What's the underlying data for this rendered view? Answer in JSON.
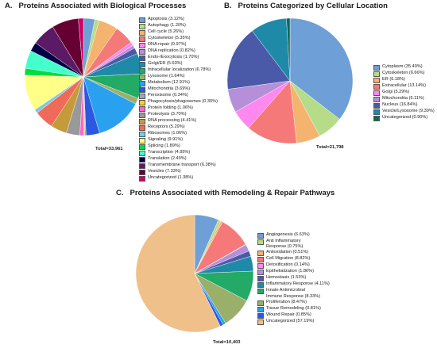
{
  "chart_data": [
    {
      "type": "pie",
      "letter": "A.",
      "title": "Proteins Associated with Biological Processes",
      "total_label": "Total=33,961",
      "slices": [
        {
          "label": "Apoptosis (3.12%)",
          "value": 3.12,
          "color": "#6e9fd6"
        },
        {
          "label": "Autophagy (1.20%)",
          "value": 1.2,
          "color": "#b6dc8a"
        },
        {
          "label": "Cell cycle (5.26%)",
          "value": 5.26,
          "color": "#f4b36f"
        },
        {
          "label": "Cytoskeleton (5.35%)",
          "value": 5.35,
          "color": "#f57979"
        },
        {
          "label": "DNA repair (0.97%)",
          "value": 0.97,
          "color": "#ff88ee"
        },
        {
          "label": "DNA replication (0.82%)",
          "value": 0.82,
          "color": "#b590d9"
        },
        {
          "label": "Endo-/Exocytosis (1.70%)",
          "value": 1.7,
          "color": "#4a5aa8"
        },
        {
          "label": "Golgi/ER (5.63%)",
          "value": 5.63,
          "color": "#1f8aa8"
        },
        {
          "label": "Intracellular localization (6.78%)",
          "value": 6.78,
          "color": "#22aa66"
        },
        {
          "label": "Lysosome (1.64%)",
          "value": 1.64,
          "color": "#9ab06a"
        },
        {
          "label": "Metabolism (12.91%)",
          "value": 12.91,
          "color": "#2aa1ee"
        },
        {
          "label": "Mitochondria (3.69%)",
          "value": 3.69,
          "color": "#2a58e0"
        },
        {
          "label": "Peroxisome (0.34%)",
          "value": 0.34,
          "color": "#a8a8a8"
        },
        {
          "label": "Phagocytosis/phagosomes (0.30%)",
          "value": 0.3,
          "color": "#ffcc33"
        },
        {
          "label": "Protein folding (1.06%)",
          "value": 1.06,
          "color": "#ff66cc"
        },
        {
          "label": "Proteolysis (3.70%)",
          "value": 3.7,
          "color": "#999999"
        },
        {
          "label": "RNA processing (4.41%)",
          "value": 4.41,
          "color": "#c49a3a"
        },
        {
          "label": "Receptors (5.29%)",
          "value": 5.29,
          "color": "#f06a5a"
        },
        {
          "label": "Ribosomes (1.06%)",
          "value": 1.06,
          "color": "#7ec8e3"
        },
        {
          "label": "Signaling (9.91%)",
          "value": 9.91,
          "color": "#ffff88"
        },
        {
          "label": "Splicing (1.89%)",
          "value": 1.89,
          "color": "#00dd44"
        },
        {
          "label": "Transcription (4.95%)",
          "value": 4.95,
          "color": "#44ffcc"
        },
        {
          "label": "Translation (2.49%)",
          "value": 2.49,
          "color": "#000044"
        },
        {
          "label": "Transmembrane transport (6.38%)",
          "value": 6.38,
          "color": "#5c1a66"
        },
        {
          "label": "Vesicles (7.33%)",
          "value": 7.33,
          "color": "#660033"
        },
        {
          "label": "Uncategorized (1.38%)",
          "value": 1.38,
          "color": "#cc0066"
        }
      ]
    },
    {
      "type": "pie",
      "letter": "B.",
      "title": "Proteins Categorized by Cellular Location",
      "total_label": "Total=21,798",
      "slices": [
        {
          "label": "Cytoplasm (35.49%)",
          "value": 35.49,
          "color": "#6e9fd6"
        },
        {
          "label": "Cytoskeleton (6.66%)",
          "value": 6.66,
          "color": "#b6dc8a"
        },
        {
          "label": "ER (6.18%)",
          "value": 6.18,
          "color": "#f4b36f"
        },
        {
          "label": "Extracellular (13.14%)",
          "value": 13.14,
          "color": "#f57979"
        },
        {
          "label": "Golgi (5.29%)",
          "value": 5.29,
          "color": "#ff88ee"
        },
        {
          "label": "Mitochondria (6.11%)",
          "value": 6.11,
          "color": "#b590d9"
        },
        {
          "label": "Nucleus (16.84%)",
          "value": 16.84,
          "color": "#4a5aa8"
        },
        {
          "label": "Vesicle/Lysosome (9.39%)",
          "value": 9.39,
          "color": "#1f8aa8"
        },
        {
          "label": "Uncategorized (0.90%)",
          "value": 0.9,
          "color": "#116655"
        }
      ]
    },
    {
      "type": "pie",
      "letter": "C.",
      "title": "Proteins Associated with Remodeling & Repair Pathways",
      "total_label": "Total=10,403",
      "slices": [
        {
          "label": "Angiogenesis (6.63%)",
          "value": 6.63,
          "color": "#6e9fd6"
        },
        {
          "label": "Anti Inflammatory\nResponse (0.75%)",
          "value": 0.75,
          "color": "#b6dc8a"
        },
        {
          "label": "Antioxidation (0.51%)",
          "value": 0.51,
          "color": "#f4b36f"
        },
        {
          "label": "Cell Migration (8.82%)",
          "value": 8.82,
          "color": "#f57979"
        },
        {
          "label": "Detoxification (0.14%)",
          "value": 0.14,
          "color": "#ff88ee"
        },
        {
          "label": "Epithelialization (1.86%)",
          "value": 1.86,
          "color": "#b590d9"
        },
        {
          "label": "Hemostasis (1.53%)",
          "value": 1.53,
          "color": "#4a5aa8"
        },
        {
          "label": "Inflammatory Response (4.11%)",
          "value": 4.11,
          "color": "#1f8aa8"
        },
        {
          "label": "Innate Antimicrobial\nImmune Response (8.33%)",
          "value": 8.33,
          "color": "#22aa66"
        },
        {
          "label": "Proliferation (8.47%)",
          "value": 8.47,
          "color": "#9ab06a"
        },
        {
          "label": "Tissue Remodeling (0.81%)",
          "value": 0.81,
          "color": "#2aa1ee"
        },
        {
          "label": "Wound Repair (0.85%)",
          "value": 0.85,
          "color": "#2a58e0"
        },
        {
          "label": "Uncategorized (57.19%)",
          "value": 57.19,
          "color": "#f0c08a"
        }
      ]
    }
  ]
}
